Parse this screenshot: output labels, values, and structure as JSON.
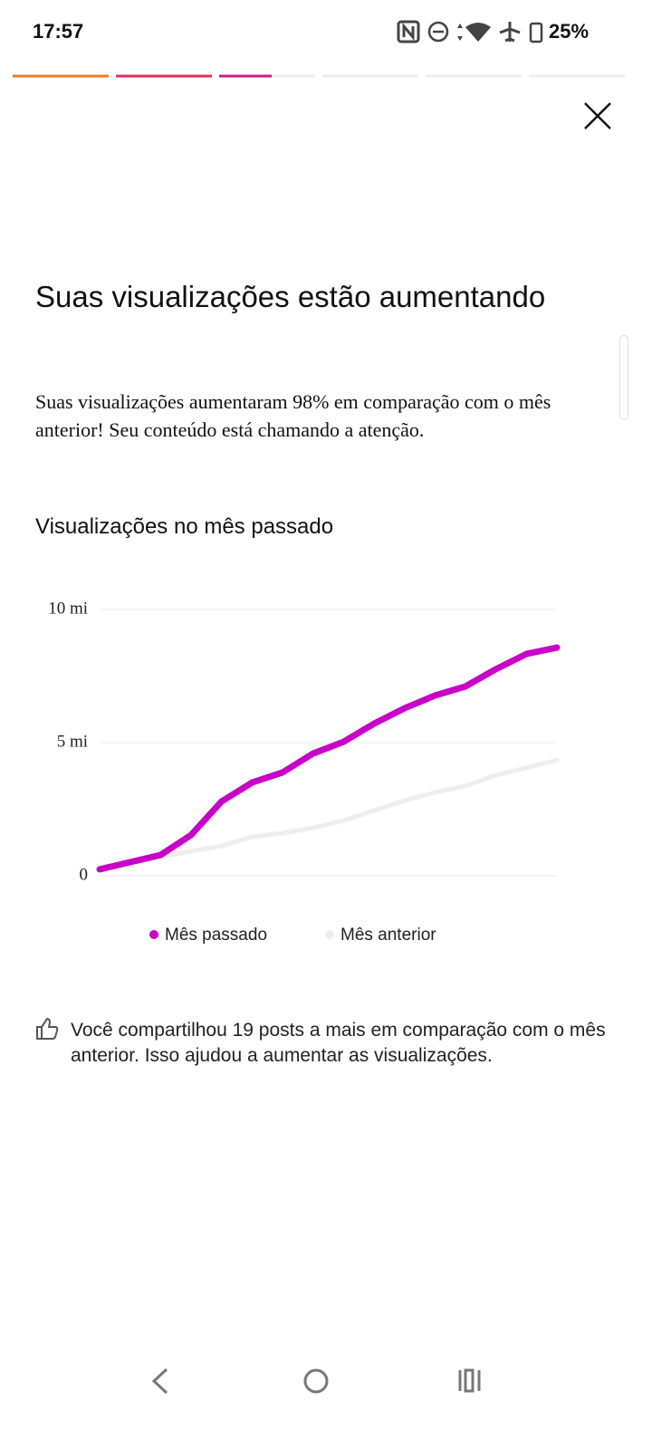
{
  "status_bar": {
    "time": "17:57",
    "battery": "25%"
  },
  "header": {
    "title": "Suas visualizações estão aumentando",
    "description": "Suas visualizações aumentaram 98% em comparação com o mês anterior! Seu conteúdo está chamando a atenção."
  },
  "chart_data": {
    "type": "line",
    "title": "Visualizações no mês passado",
    "categories": [
      null,
      null,
      null,
      null,
      null,
      null,
      null,
      null,
      null,
      null,
      null,
      null,
      null,
      null,
      null,
      null
    ],
    "series": [
      {
        "name": "Mês passado",
        "color": "#c800c8",
        "values": [
          0.24,
          0.51,
          0.78,
          1.53,
          2.79,
          3.5,
          3.88,
          4.59,
          5.03,
          5.71,
          6.29,
          6.77,
          7.11,
          7.76,
          8.33,
          8.57
        ]
      },
      {
        "name": "Mês anterior",
        "color": "#eeeeee",
        "values": [
          0.24,
          0.48,
          0.71,
          0.92,
          1.12,
          1.46,
          1.6,
          1.8,
          2.07,
          2.45,
          2.82,
          3.13,
          3.37,
          3.78,
          4.05,
          4.35
        ]
      }
    ],
    "ylim": [
      0,
      10
    ],
    "yticks": [
      0,
      {
        "value": 5,
        "label": "5 mi"
      },
      {
        "value": 10,
        "label": "10 mi"
      }
    ],
    "grid": true
  },
  "insight": {
    "text": "Você compartilhou 19 posts a mais em comparação com o mês anterior. Isso ajudou a aumentar as visualizações."
  }
}
